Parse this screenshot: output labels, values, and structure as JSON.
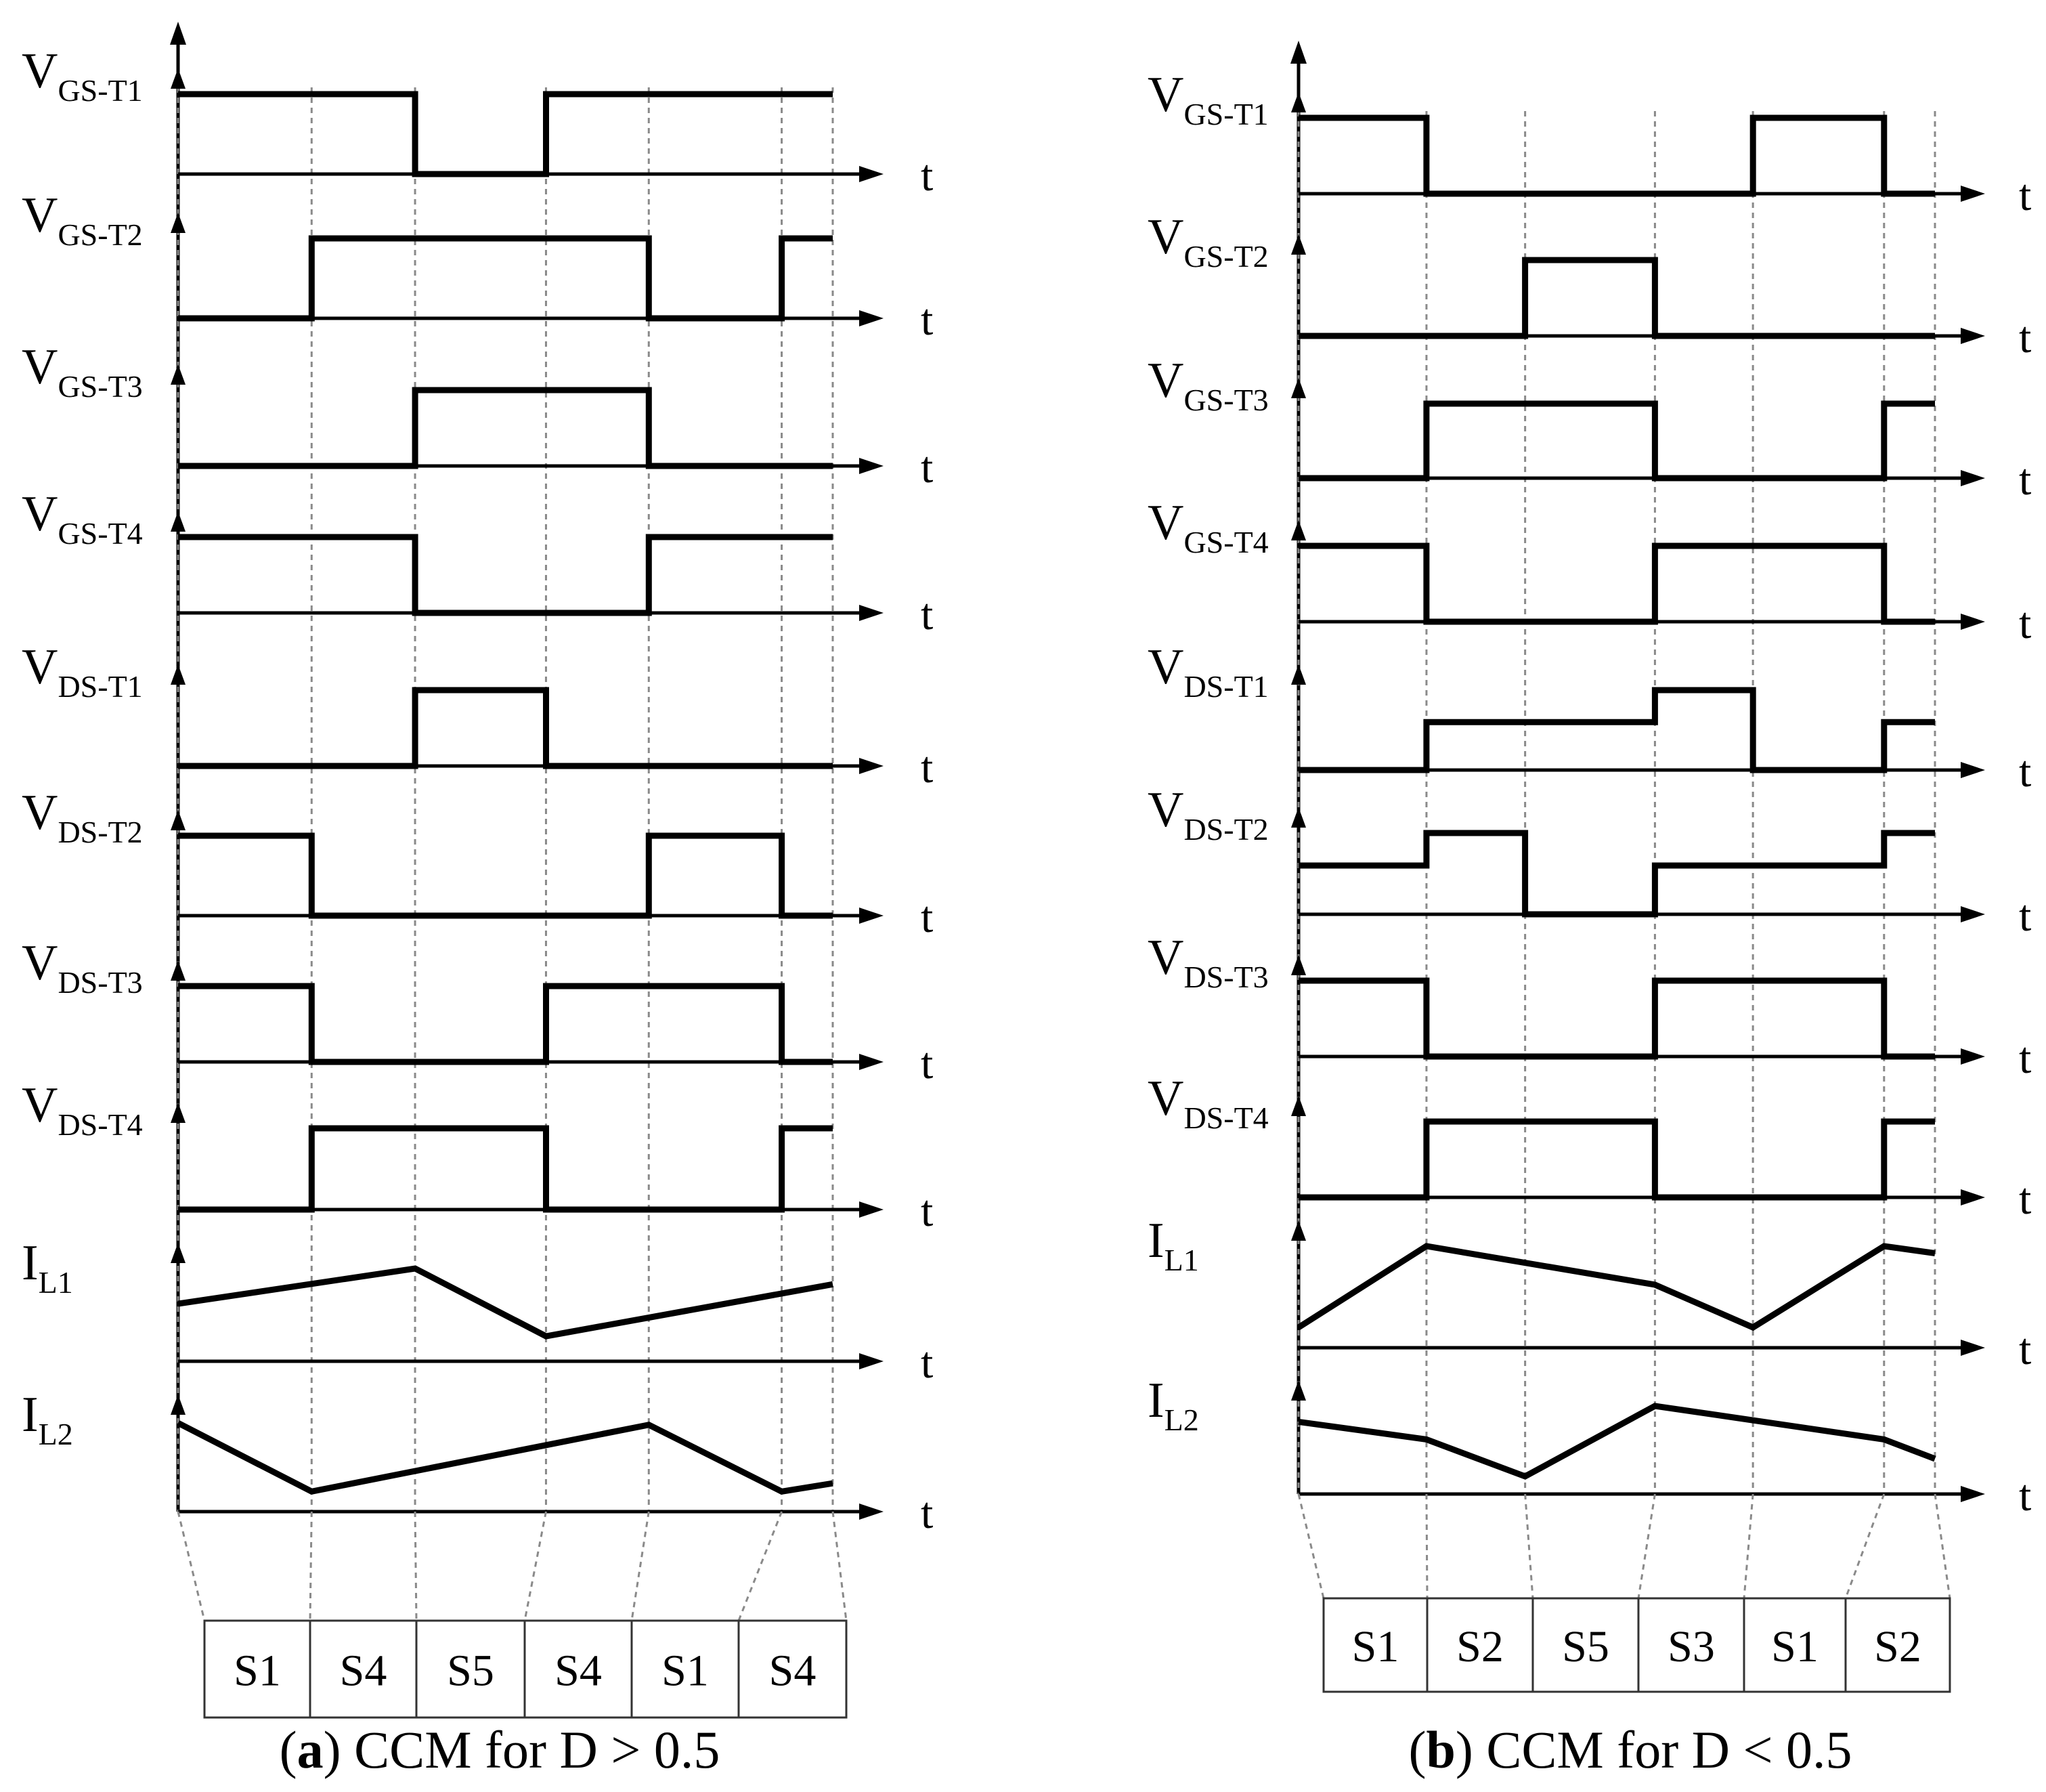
{
  "figure": {
    "t_label": "t",
    "panels": [
      {
        "id": "a",
        "caption_letter": "a",
        "caption_text": "CCM for D > 0.5",
        "boundaries": [
          0.0,
          0.204,
          0.362,
          0.562,
          0.719,
          0.922,
          1.0
        ],
        "states": [
          "S1",
          "S4",
          "S5",
          "S4",
          "S1",
          "S4"
        ],
        "traces": [
          {
            "main": "V",
            "sub": "GS-T1",
            "kind": "step",
            "pts": [
              [
                0,
                1
              ],
              [
                0.362,
                1
              ],
              [
                0.362,
                0
              ],
              [
                0.562,
                0
              ],
              [
                0.562,
                1
              ],
              [
                1,
                1
              ]
            ]
          },
          {
            "main": "V",
            "sub": "GS-T2",
            "kind": "step",
            "pts": [
              [
                0,
                0
              ],
              [
                0.204,
                0
              ],
              [
                0.204,
                1
              ],
              [
                0.719,
                1
              ],
              [
                0.719,
                0
              ],
              [
                0.922,
                0
              ],
              [
                0.922,
                1
              ],
              [
                1,
                1
              ]
            ]
          },
          {
            "main": "V",
            "sub": "GS-T3",
            "kind": "step",
            "pts": [
              [
                0,
                0
              ],
              [
                0.362,
                0
              ],
              [
                0.362,
                1
              ],
              [
                0.719,
                1
              ],
              [
                0.719,
                0
              ],
              [
                1,
                0
              ]
            ]
          },
          {
            "main": "V",
            "sub": "GS-T4",
            "kind": "step",
            "pts": [
              [
                0,
                1
              ],
              [
                0.362,
                1
              ],
              [
                0.362,
                0
              ],
              [
                0.719,
                0
              ],
              [
                0.719,
                1
              ],
              [
                1,
                1
              ]
            ]
          },
          {
            "main": "V",
            "sub": "DS-T1",
            "kind": "step",
            "pts": [
              [
                0,
                0
              ],
              [
                0.362,
                0
              ],
              [
                0.362,
                1
              ],
              [
                0.562,
                1
              ],
              [
                0.562,
                0
              ],
              [
                1,
                0
              ]
            ]
          },
          {
            "main": "V",
            "sub": "DS-T2",
            "kind": "step",
            "pts": [
              [
                0,
                1
              ],
              [
                0.204,
                1
              ],
              [
                0.204,
                0
              ],
              [
                0.719,
                0
              ],
              [
                0.719,
                1
              ],
              [
                0.922,
                1
              ],
              [
                0.922,
                0
              ],
              [
                1,
                0
              ]
            ]
          },
          {
            "main": "V",
            "sub": "DS-T3",
            "kind": "step",
            "pts": [
              [
                0,
                1
              ],
              [
                0.204,
                1
              ],
              [
                0.204,
                0
              ],
              [
                0.562,
                0
              ],
              [
                0.562,
                1
              ],
              [
                0.922,
                1
              ],
              [
                0.922,
                0
              ],
              [
                1,
                0
              ]
            ]
          },
          {
            "main": "V",
            "sub": "DS-T4",
            "kind": "step",
            "pts": [
              [
                0,
                0
              ],
              [
                0.204,
                0
              ],
              [
                0.204,
                1
              ],
              [
                0.562,
                1
              ],
              [
                0.562,
                0
              ],
              [
                0.922,
                0
              ],
              [
                0.922,
                1
              ],
              [
                1,
                1
              ]
            ]
          },
          {
            "main": "I",
            "sub": "L1",
            "kind": "ramp",
            "pts": [
              [
                0,
                0.62
              ],
              [
                0.362,
                1.0
              ],
              [
                0.562,
                0.27
              ],
              [
                1,
                0.83
              ]
            ]
          },
          {
            "main": "I",
            "sub": "L2",
            "kind": "ramp",
            "pts": [
              [
                0,
                0.97
              ],
              [
                0.204,
                0.22
              ],
              [
                0.719,
                0.95
              ],
              [
                0.922,
                0.22
              ],
              [
                1,
                0.31
              ]
            ]
          }
        ]
      },
      {
        "id": "b",
        "caption_letter": "b",
        "caption_text": "CCM for D < 0.5",
        "boundaries": [
          0.0,
          0.201,
          0.356,
          0.56,
          0.714,
          0.92,
          1.0
        ],
        "states": [
          "S1",
          "S2",
          "S5",
          "S3",
          "S1",
          "S2"
        ],
        "traces": [
          {
            "main": "V",
            "sub": "GS-T1",
            "kind": "step",
            "pts": [
              [
                0,
                1
              ],
              [
                0.201,
                1
              ],
              [
                0.201,
                0
              ],
              [
                0.714,
                0
              ],
              [
                0.714,
                1
              ],
              [
                0.92,
                1
              ],
              [
                0.92,
                0
              ],
              [
                1,
                0
              ]
            ]
          },
          {
            "main": "V",
            "sub": "GS-T2",
            "kind": "step",
            "pts": [
              [
                0,
                0
              ],
              [
                0.356,
                0
              ],
              [
                0.356,
                1
              ],
              [
                0.56,
                1
              ],
              [
                0.56,
                0
              ],
              [
                1,
                0
              ]
            ]
          },
          {
            "main": "V",
            "sub": "GS-T3",
            "kind": "step",
            "pts": [
              [
                0,
                0
              ],
              [
                0.201,
                0
              ],
              [
                0.201,
                1
              ],
              [
                0.56,
                1
              ],
              [
                0.56,
                0
              ],
              [
                0.92,
                0
              ],
              [
                0.92,
                1
              ],
              [
                1,
                1
              ]
            ]
          },
          {
            "main": "V",
            "sub": "GS-T4",
            "kind": "step",
            "pts": [
              [
                0,
                1
              ],
              [
                0.201,
                1
              ],
              [
                0.201,
                0
              ],
              [
                0.56,
                0
              ],
              [
                0.56,
                1
              ],
              [
                0.92,
                1
              ],
              [
                0.92,
                0
              ],
              [
                1,
                0
              ]
            ]
          },
          {
            "main": "V",
            "sub": "DS-T1",
            "kind": "step",
            "pts": [
              [
                0,
                0
              ],
              [
                0.201,
                0
              ],
              [
                0.201,
                0.6
              ],
              [
                0.56,
                0.6
              ],
              [
                0.56,
                1
              ],
              [
                0.714,
                1
              ],
              [
                0.714,
                0
              ],
              [
                0.92,
                0
              ],
              [
                0.92,
                0.6
              ],
              [
                1,
                0.6
              ]
            ]
          },
          {
            "main": "V",
            "sub": "DS-T2",
            "kind": "step",
            "pts": [
              [
                0,
                0.6
              ],
              [
                0.201,
                0.6
              ],
              [
                0.201,
                1
              ],
              [
                0.356,
                1
              ],
              [
                0.356,
                0
              ],
              [
                0.56,
                0
              ],
              [
                0.56,
                0.6
              ],
              [
                0.92,
                0.6
              ],
              [
                0.92,
                1
              ],
              [
                1,
                1
              ]
            ]
          },
          {
            "main": "V",
            "sub": "DS-T3",
            "kind": "step",
            "pts": [
              [
                0,
                1
              ],
              [
                0.201,
                1
              ],
              [
                0.201,
                0
              ],
              [
                0.56,
                0
              ],
              [
                0.56,
                1
              ],
              [
                0.92,
                1
              ],
              [
                0.92,
                0
              ],
              [
                1,
                0
              ]
            ]
          },
          {
            "main": "V",
            "sub": "DS-T4",
            "kind": "step",
            "pts": [
              [
                0,
                0
              ],
              [
                0.201,
                0
              ],
              [
                0.201,
                1
              ],
              [
                0.56,
                1
              ],
              [
                0.56,
                0
              ],
              [
                0.92,
                0
              ],
              [
                0.92,
                1
              ],
              [
                1,
                1
              ]
            ]
          },
          {
            "main": "I",
            "sub": "L1",
            "kind": "ramp",
            "pts": [
              [
                0,
                0.2
              ],
              [
                0.201,
                1.0
              ],
              [
                0.56,
                0.62
              ],
              [
                0.714,
                0.2
              ],
              [
                0.92,
                1.0
              ],
              [
                1,
                0.93
              ]
            ]
          },
          {
            "main": "I",
            "sub": "L2",
            "kind": "ramp",
            "pts": [
              [
                0,
                0.82
              ],
              [
                0.201,
                0.62
              ],
              [
                0.356,
                0.2
              ],
              [
                0.56,
                1.0
              ],
              [
                0.92,
                0.62
              ],
              [
                1,
                0.4
              ]
            ]
          }
        ]
      }
    ]
  }
}
